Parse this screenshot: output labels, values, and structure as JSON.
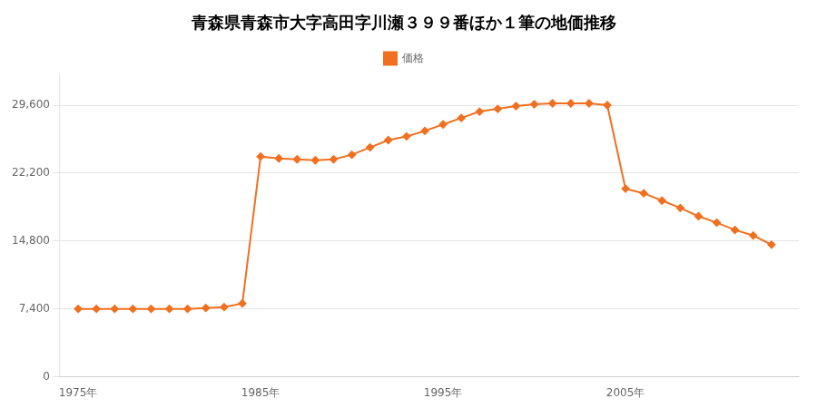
{
  "chart_data": {
    "type": "line",
    "title": "青森県青森市大字高田字川瀬３９９番ほか１筆の地価推移",
    "x": [
      1975,
      1976,
      1977,
      1978,
      1979,
      1980,
      1981,
      1982,
      1983,
      1984,
      1985,
      1986,
      1987,
      1988,
      1989,
      1990,
      1991,
      1992,
      1993,
      1994,
      1995,
      1996,
      1997,
      1998,
      1999,
      2000,
      2001,
      2002,
      2003,
      2004,
      2005,
      2006,
      2007,
      2008,
      2009,
      2010,
      2011,
      2012,
      2013
    ],
    "series": [
      {
        "name": "価格",
        "color": "#f07020",
        "marker": "diamond",
        "values": [
          7400,
          7400,
          7400,
          7400,
          7400,
          7400,
          7400,
          7500,
          7600,
          8000,
          24000,
          23800,
          23700,
          23600,
          23700,
          24200,
          25000,
          25800,
          26200,
          26800,
          27500,
          28200,
          28900,
          29200,
          29500,
          29700,
          29800,
          29800,
          29800,
          29600,
          20500,
          20000,
          19200,
          18400,
          17500,
          16800,
          16000,
          15400,
          14400
        ]
      }
    ],
    "xlim": [
      1974,
      2014.5
    ],
    "xticks": [
      {
        "value": 1975,
        "label": "1975年"
      },
      {
        "value": 1985,
        "label": "1985年"
      },
      {
        "value": 1995,
        "label": "1995年"
      },
      {
        "value": 2005,
        "label": "2005年"
      }
    ],
    "ylim": [
      0,
      33000
    ],
    "yticks": [
      0,
      {
        "value": 7400,
        "label": "7,400"
      },
      {
        "value": 14800,
        "label": "14,800"
      },
      {
        "value": 22200,
        "label": "22,200"
      },
      {
        "value": 29600,
        "label": "29,600"
      }
    ],
    "grid": "y",
    "legend": "top"
  }
}
